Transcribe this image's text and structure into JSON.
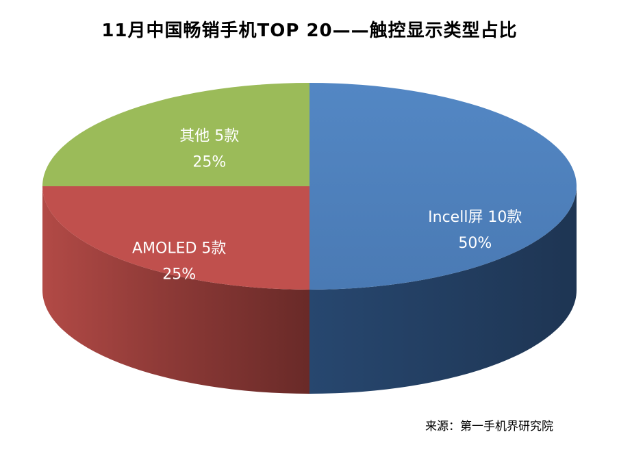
{
  "title": "11月中国畅销手机TOP 20——触控显示类型占比",
  "source": "来源：第一手机界研究院",
  "chart_data": {
    "type": "pie",
    "title": "11月中国畅销手机TOP 20——触控显示类型占比",
    "slices": [
      {
        "label": "Incell屏 10款",
        "value": 10,
        "percent": "50%",
        "color": "#4F81BD",
        "label_color": "#ffffff"
      },
      {
        "label": "AMOLED 5款",
        "value": 5,
        "percent": "25%",
        "color": "#C0504D",
        "label_color": "#ffffff"
      },
      {
        "label": "其他 5款",
        "value": 5,
        "percent": "25%",
        "color": "#9BBB59",
        "label_color": "#ffffff"
      }
    ],
    "style": "3d"
  }
}
